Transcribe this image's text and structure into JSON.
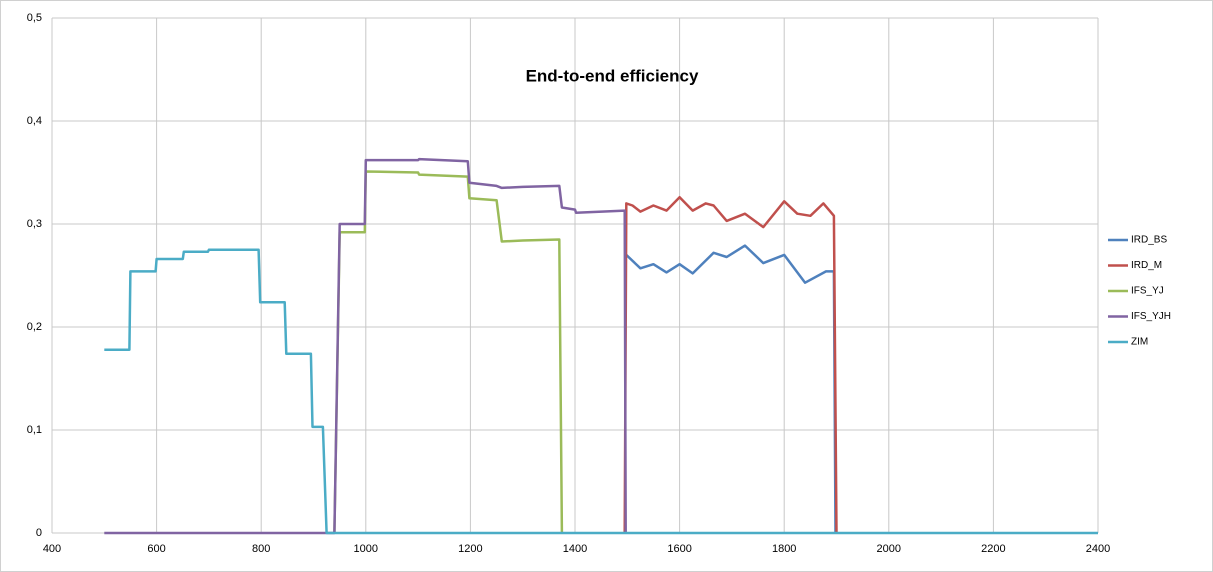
{
  "chart_data": {
    "type": "line",
    "title": "End-to-end efficiency",
    "xlim": [
      400,
      2400
    ],
    "xticks": [
      400,
      600,
      800,
      1000,
      1200,
      1400,
      1600,
      1800,
      2000,
      2200,
      2400
    ],
    "ylim": [
      0,
      0.5
    ],
    "yticks": [
      0,
      {
        "value": 0.1,
        "label": "0,1"
      },
      {
        "value": 0.2,
        "label": "0,2"
      },
      {
        "value": 0.3,
        "label": "0,3"
      },
      {
        "value": 0.4,
        "label": "0,4"
      },
      {
        "value": 0.5,
        "label": "0,5"
      }
    ],
    "grid": true,
    "legend": "right",
    "series": [
      {
        "name": "IRD_BS",
        "color": "#4f81bd",
        "x": [
          1498,
          1525,
          1550,
          1575,
          1600,
          1625,
          1665,
          1690,
          1725,
          1760,
          1800,
          1840,
          1880,
          1895,
          1898
        ],
        "values": [
          0.27,
          0.257,
          0.261,
          0.253,
          0.261,
          0.252,
          0.272,
          0.268,
          0.279,
          0.262,
          0.27,
          0.243,
          0.254,
          0.254,
          0
        ]
      },
      {
        "name": "IRD_M",
        "color": "#c0504d",
        "x": [
          1495,
          1498,
          1510,
          1525,
          1550,
          1575,
          1600,
          1625,
          1650,
          1665,
          1690,
          1725,
          1760,
          1800,
          1825,
          1850,
          1875,
          1895,
          1900
        ],
        "values": [
          0,
          0.32,
          0.318,
          0.312,
          0.318,
          0.313,
          0.326,
          0.313,
          0.32,
          0.318,
          0.303,
          0.31,
          0.297,
          0.322,
          0.31,
          0.308,
          0.32,
          0.308,
          0
        ]
      },
      {
        "name": "IFS_YJ",
        "color": "#9bbb59",
        "x": [
          940,
          950,
          998,
          1000,
          1100,
          1102,
          1195,
          1198,
          1250,
          1260,
          1300,
          1370,
          1375
        ],
        "values": [
          0,
          0.292,
          0.292,
          0.351,
          0.35,
          0.348,
          0.346,
          0.325,
          0.323,
          0.283,
          0.284,
          0.285,
          0
        ]
      },
      {
        "name": "IFS_YJH",
        "color": "#8064a2",
        "x": [
          500,
          940,
          950,
          998,
          1000,
          1100,
          1102,
          1195,
          1198,
          1250,
          1260,
          1300,
          1370,
          1375,
          1400,
          1402,
          1495,
          1497
        ],
        "values": [
          0,
          0,
          0.3,
          0.3,
          0.362,
          0.362,
          0.363,
          0.361,
          0.34,
          0.337,
          0.335,
          0.336,
          0.337,
          0.316,
          0.314,
          0.311,
          0.313,
          0
        ]
      },
      {
        "name": "ZIM",
        "color": "#4bacc6",
        "x": [
          500,
          548,
          550,
          598,
          600,
          650,
          652,
          698,
          700,
          795,
          798,
          845,
          848,
          895,
          898,
          918,
          925,
          2400
        ],
        "values": [
          0.178,
          0.178,
          0.254,
          0.254,
          0.266,
          0.266,
          0.273,
          0.273,
          0.275,
          0.275,
          0.224,
          0.224,
          0.174,
          0.174,
          0.103,
          0.103,
          0,
          0
        ]
      }
    ]
  }
}
